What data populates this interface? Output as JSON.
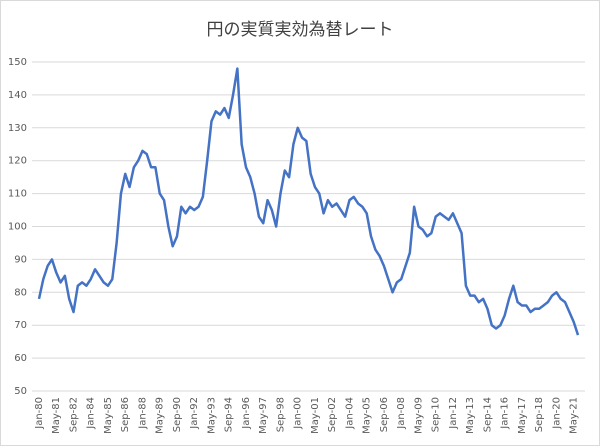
{
  "chart_data": {
    "type": "line",
    "title": "円の実質実効為替レート",
    "categories": [
      "Jan-80",
      null,
      null,
      null,
      "May-81",
      null,
      null,
      null,
      "Sep-82",
      null,
      null,
      null,
      "Jan-84",
      null,
      null,
      null,
      "May-85",
      null,
      null,
      null,
      "Sep-86",
      null,
      null,
      null,
      "Jan-88",
      null,
      null,
      null,
      "May-89",
      null,
      null,
      null,
      "Sep-90",
      null,
      null,
      null,
      "Jan-92",
      null,
      null,
      null,
      "May-93",
      null,
      null,
      null,
      "Sep-94",
      null,
      null,
      null,
      "Jan-96",
      null,
      null,
      null,
      "May-97",
      null,
      null,
      null,
      "Sep-98",
      null,
      null,
      null,
      "Jan-00",
      null,
      null,
      null,
      "May-01",
      null,
      null,
      null,
      "Sep-02",
      null,
      null,
      null,
      "Jan-04",
      null,
      null,
      null,
      "May-05",
      null,
      null,
      null,
      "Sep-06",
      null,
      null,
      null,
      "Jan-08",
      null,
      null,
      null,
      "May-09",
      null,
      null,
      null,
      "Sep-10",
      null,
      null,
      null,
      "Jan-12",
      null,
      null,
      null,
      "May-13",
      null,
      null,
      null,
      "Sep-14",
      null,
      null,
      null,
      "Jan-16",
      null,
      null,
      null,
      "May-17",
      null,
      null,
      null,
      "Sep-18",
      null,
      null,
      null,
      "Jan-20",
      null,
      null,
      null,
      "May-21",
      null
    ],
    "series": [
      {
        "color": "#4472c4",
        "values": [
          78,
          84,
          88,
          90,
          86,
          83,
          85,
          78,
          74,
          82,
          83,
          82,
          84,
          87,
          85,
          83,
          82,
          84,
          95,
          110,
          116,
          112,
          118,
          120,
          123,
          122,
          118,
          118,
          110,
          108,
          100,
          94,
          97,
          106,
          104,
          106,
          105,
          106,
          109,
          120,
          132,
          135,
          134,
          136,
          133,
          140,
          148,
          125,
          118,
          115,
          110,
          103,
          101,
          108,
          105,
          100,
          110,
          117,
          115,
          125,
          130,
          127,
          126,
          116,
          112,
          110,
          104,
          108,
          106,
          107,
          105,
          103,
          108,
          109,
          107,
          106,
          104,
          97,
          93,
          91,
          88,
          84,
          80,
          83,
          84,
          88,
          92,
          106,
          100,
          99,
          97,
          98,
          103,
          104,
          103,
          102,
          104,
          101,
          98,
          82,
          79,
          79,
          77,
          78,
          75,
          70,
          69,
          70,
          73,
          78,
          82,
          77,
          76,
          76,
          74,
          75,
          75,
          76,
          77,
          79,
          80,
          78,
          77,
          74,
          71,
          67
        ]
      }
    ],
    "ylim": [
      50,
      150
    ],
    "yticks": [
      50,
      60,
      70,
      80,
      90,
      100,
      110,
      120,
      130,
      140,
      150
    ],
    "grid": true
  }
}
